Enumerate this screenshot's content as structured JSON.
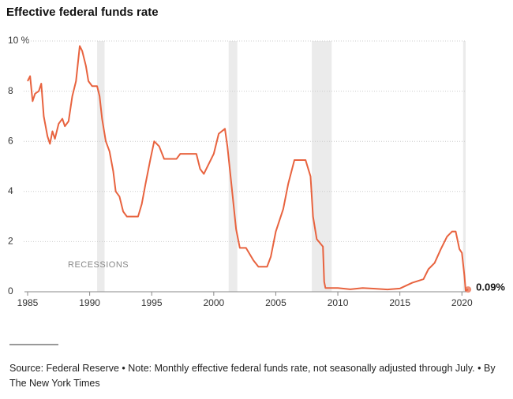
{
  "chart_data": {
    "type": "line",
    "title": "Effective federal funds rate",
    "annotation": "RECESSIONS",
    "footnote": "Source: Federal Reserve  •  Note: Monthly effective federal funds rate, not seasonally adjusted through July.  •  By The New York Times",
    "xlim": [
      1985,
      2021
    ],
    "ylim": [
      0,
      10
    ],
    "xticks": [
      1985,
      1990,
      1995,
      2000,
      2005,
      2010,
      2015,
      2020
    ],
    "yticks": [
      0,
      2,
      4,
      6,
      8,
      {
        "value": 10,
        "label": "10 %"
      }
    ],
    "grid": true,
    "recessions": [
      [
        1990.6,
        1991.2
      ],
      [
        2001.2,
        2001.9
      ],
      [
        2007.9,
        2009.5
      ],
      [
        2020.1,
        2020.3
      ]
    ],
    "recession_color": "#ebebeb",
    "x": [
      1985.0,
      1985.2,
      1985.4,
      1985.6,
      1985.9,
      1986.1,
      1986.3,
      1986.6,
      1986.8,
      1987.0,
      1987.2,
      1987.5,
      1987.8,
      1988.0,
      1988.3,
      1988.6,
      1988.9,
      1989.2,
      1989.4,
      1989.7,
      1989.9,
      1990.2,
      1990.6,
      1990.8,
      1991.0,
      1991.3,
      1991.6,
      1991.9,
      1992.1,
      1992.4,
      1992.7,
      1993.0,
      1993.5,
      1993.9,
      1994.2,
      1994.5,
      1994.9,
      1995.2,
      1995.6,
      1996.0,
      1996.5,
      1997.0,
      1997.3,
      1998.0,
      1998.6,
      1998.9,
      1999.2,
      1999.6,
      2000.0,
      2000.4,
      2000.9,
      2001.1,
      2001.4,
      2001.8,
      2002.1,
      2002.6,
      2003.2,
      2003.6,
      2004.3,
      2004.6,
      2005.0,
      2005.6,
      2006.0,
      2006.5,
      2007.4,
      2007.8,
      2008.0,
      2008.3,
      2008.8,
      2008.9,
      2009.0,
      2010.0,
      2011.0,
      2012.0,
      2013.0,
      2014.0,
      2015.0,
      2016.0,
      2016.9,
      2017.3,
      2017.8,
      2018.3,
      2018.8,
      2019.2,
      2019.5,
      2019.8,
      2020.0,
      2020.2,
      2020.3,
      2020.5
    ],
    "series": [
      {
        "color": "#e8633f",
        "values": [
          8.4,
          8.6,
          7.6,
          7.9,
          8.0,
          8.3,
          7.0,
          6.2,
          5.9,
          6.4,
          6.1,
          6.7,
          6.9,
          6.6,
          6.8,
          7.8,
          8.4,
          9.8,
          9.6,
          9.0,
          8.4,
          8.2,
          8.2,
          7.8,
          6.9,
          6.0,
          5.6,
          4.8,
          4.0,
          3.8,
          3.2,
          3.0,
          3.0,
          3.0,
          3.5,
          4.3,
          5.3,
          6.0,
          5.8,
          5.3,
          5.3,
          5.3,
          5.5,
          5.5,
          5.5,
          4.9,
          4.7,
          5.1,
          5.5,
          6.3,
          6.5,
          5.8,
          4.4,
          2.5,
          1.75,
          1.75,
          1.25,
          1.0,
          1.0,
          1.4,
          2.4,
          3.3,
          4.3,
          5.25,
          5.25,
          4.6,
          3.0,
          2.1,
          1.8,
          0.4,
          0.15,
          0.15,
          0.1,
          0.15,
          0.12,
          0.09,
          0.13,
          0.36,
          0.5,
          0.9,
          1.15,
          1.7,
          2.2,
          2.4,
          2.4,
          1.7,
          1.55,
          0.65,
          0.05,
          0.09
        ],
        "end_label": {
          "value": 0.09,
          "label": "0.09%"
        }
      }
    ]
  }
}
